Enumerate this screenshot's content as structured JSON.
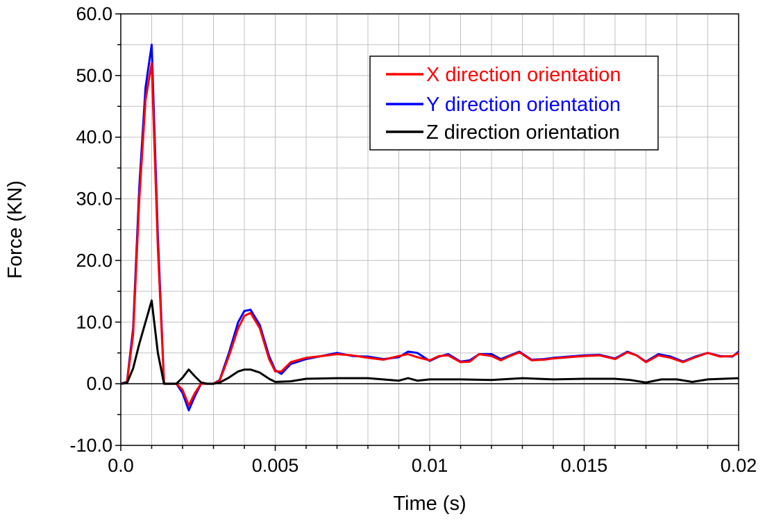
{
  "chart_data": {
    "type": "line",
    "xlabel": "Time (s)",
    "ylabel": "Force (KN)",
    "xlim": [
      0,
      0.02
    ],
    "ylim": [
      -10,
      60
    ],
    "x_ticks": [
      0,
      0.005,
      0.01,
      0.015,
      0.02
    ],
    "x_tick_labels": [
      "0.0",
      "0.005",
      "0.01",
      "0.015",
      "0.02"
    ],
    "y_ticks": [
      -10,
      0,
      10,
      20,
      30,
      40,
      50,
      60
    ],
    "y_tick_labels": [
      "-10.0",
      "0.0",
      "10.0",
      "20.0",
      "30.0",
      "40.0",
      "50.0",
      "60.0"
    ],
    "grid": true,
    "legend_position": "top-right",
    "series": [
      {
        "name": "X direction orientation",
        "color": "#ff0000",
        "x": [
          0,
          0.0002,
          0.0004,
          0.0006,
          0.0008,
          0.001,
          0.0012,
          0.0014,
          0.0016,
          0.0018,
          0.002,
          0.0022,
          0.0024,
          0.0026,
          0.0028,
          0.003,
          0.0032,
          0.0035,
          0.0038,
          0.004,
          0.0042,
          0.0045,
          0.0048,
          0.005,
          0.0052,
          0.0055,
          0.006,
          0.0065,
          0.007,
          0.0075,
          0.008,
          0.0085,
          0.009,
          0.0093,
          0.0096,
          0.01,
          0.0103,
          0.0106,
          0.011,
          0.0113,
          0.0116,
          0.012,
          0.0123,
          0.0126,
          0.0129,
          0.0133,
          0.0137,
          0.014,
          0.0145,
          0.015,
          0.0155,
          0.016,
          0.0164,
          0.0167,
          0.017,
          0.0174,
          0.0178,
          0.0182,
          0.0186,
          0.019,
          0.0194,
          0.0198,
          0.02
        ],
        "y": [
          0,
          0.2,
          8,
          30,
          46,
          52,
          22,
          0,
          0,
          0,
          -1,
          -3.5,
          -1.5,
          0,
          0,
          0,
          0.5,
          4.5,
          9,
          11,
          11.5,
          9,
          4,
          2,
          2,
          3.5,
          4.2,
          4.5,
          4.8,
          4.6,
          4.2,
          3.9,
          4.5,
          4.8,
          4.3,
          3.8,
          4.5,
          4.6,
          3.5,
          3.6,
          4.8,
          4.5,
          3.8,
          4.5,
          5.1,
          3.8,
          3.9,
          4.1,
          4.3,
          4.5,
          4.6,
          4.0,
          5.1,
          4.6,
          3.5,
          4.6,
          4.2,
          3.5,
          4.3,
          5.0,
          4.4,
          4.5,
          5.0
        ]
      },
      {
        "name": "Y direction orientation",
        "color": "#0000ff",
        "x": [
          0,
          0.0002,
          0.0004,
          0.0006,
          0.0008,
          0.001,
          0.0012,
          0.0014,
          0.0016,
          0.0018,
          0.002,
          0.0022,
          0.0024,
          0.0026,
          0.0028,
          0.003,
          0.0032,
          0.0035,
          0.0038,
          0.004,
          0.0042,
          0.0045,
          0.0048,
          0.005,
          0.0052,
          0.0055,
          0.006,
          0.0065,
          0.007,
          0.0075,
          0.008,
          0.0085,
          0.009,
          0.0093,
          0.0096,
          0.01,
          0.0103,
          0.0106,
          0.011,
          0.0113,
          0.0116,
          0.012,
          0.0123,
          0.0126,
          0.0129,
          0.0133,
          0.0137,
          0.014,
          0.0145,
          0.015,
          0.0155,
          0.016,
          0.0164,
          0.0167,
          0.017,
          0.0174,
          0.0178,
          0.0182,
          0.0186,
          0.019,
          0.0194,
          0.0198,
          0.02
        ],
        "y": [
          0,
          0.3,
          9,
          32,
          48,
          55,
          24,
          0,
          0,
          0,
          -1.5,
          -4.3,
          -2,
          0,
          0,
          0,
          0.6,
          5,
          10,
          11.8,
          12,
          9.5,
          4.5,
          2.2,
          1.6,
          3.2,
          4.0,
          4.5,
          5.0,
          4.5,
          4.4,
          4.0,
          4.3,
          5.2,
          5.0,
          3.7,
          4.4,
          4.8,
          3.6,
          3.8,
          4.8,
          4.8,
          4.0,
          4.6,
          5.2,
          3.9,
          4.0,
          4.2,
          4.4,
          4.6,
          4.7,
          4.1,
          5.2,
          4.6,
          3.6,
          4.8,
          4.4,
          3.6,
          4.4,
          5.0,
          4.5,
          4.4,
          5.2
        ]
      },
      {
        "name": "Z direction orientation",
        "color": "#000000",
        "x": [
          0,
          0.0002,
          0.0004,
          0.0006,
          0.0008,
          0.001,
          0.0012,
          0.0014,
          0.0016,
          0.0018,
          0.002,
          0.0022,
          0.0024,
          0.0026,
          0.0028,
          0.003,
          0.0032,
          0.0035,
          0.0038,
          0.004,
          0.0042,
          0.0045,
          0.0048,
          0.005,
          0.0055,
          0.006,
          0.007,
          0.008,
          0.009,
          0.0093,
          0.0096,
          0.01,
          0.011,
          0.012,
          0.013,
          0.014,
          0.015,
          0.016,
          0.0165,
          0.017,
          0.0175,
          0.018,
          0.0185,
          0.019,
          0.0195,
          0.02
        ],
        "y": [
          0,
          0.1,
          2.5,
          6.5,
          10,
          13.5,
          5,
          0,
          0,
          0,
          1,
          2.3,
          1.2,
          0.2,
          0,
          0,
          0.2,
          1,
          2,
          2.3,
          2.3,
          1.8,
          0.8,
          0.3,
          0.4,
          0.8,
          0.9,
          0.9,
          0.5,
          0.9,
          0.5,
          0.7,
          0.7,
          0.6,
          0.9,
          0.7,
          0.8,
          0.8,
          0.6,
          0.2,
          0.7,
          0.7,
          0.3,
          0.7,
          0.8,
          0.9
        ]
      }
    ]
  }
}
